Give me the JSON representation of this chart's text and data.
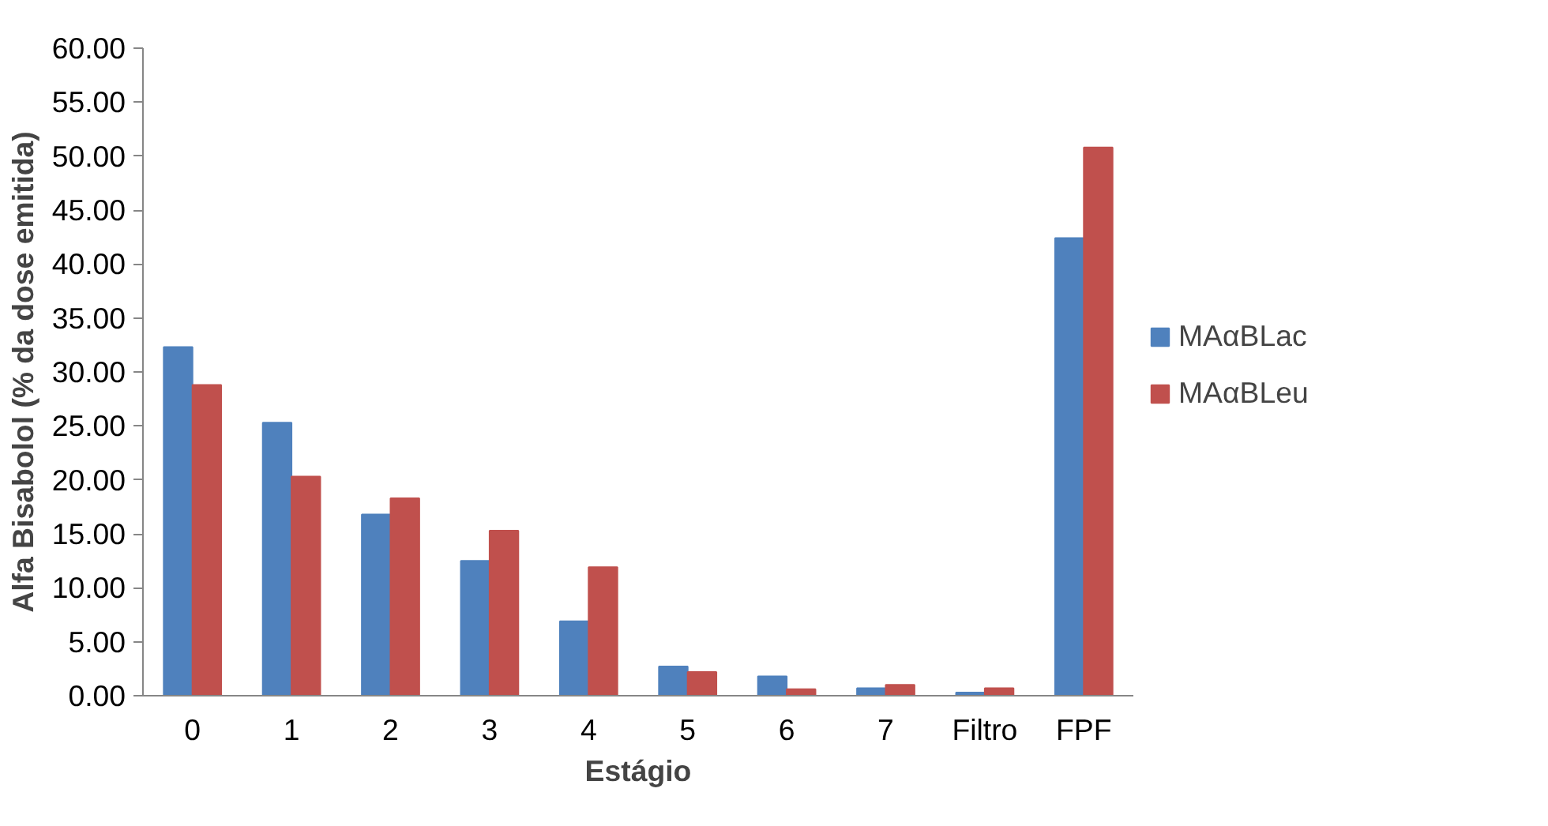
{
  "chart_data": {
    "type": "bar",
    "xlabel": "Estágio",
    "ylabel": "Alfa Bisabolol (% da dose emitida)",
    "categories": [
      "0",
      "1",
      "2",
      "3",
      "4",
      "5",
      "6",
      "7",
      "Filtro",
      "FPF"
    ],
    "series": [
      {
        "name": "MAαBLac",
        "color": "#4f81bd",
        "values": [
          32.3,
          25.3,
          16.8,
          12.5,
          6.9,
          2.7,
          1.8,
          0.7,
          0.3,
          42.4
        ]
      },
      {
        "name": "MAαBLeu",
        "color": "#c0504d",
        "values": [
          28.8,
          20.3,
          18.3,
          15.3,
          11.9,
          2.2,
          0.6,
          1.0,
          0.7,
          50.8
        ]
      }
    ],
    "ylim": [
      0,
      60
    ],
    "yticks": [
      {
        "value": 0,
        "label": "0.00"
      },
      {
        "value": 5,
        "label": "5.00"
      },
      {
        "value": 10,
        "label": "10.00"
      },
      {
        "value": 15,
        "label": "15.00"
      },
      {
        "value": 20,
        "label": "20.00"
      },
      {
        "value": 25,
        "label": "25.00"
      },
      {
        "value": 30,
        "label": "30.00"
      },
      {
        "value": 35,
        "label": "35.00"
      },
      {
        "value": 40,
        "label": "40.00"
      },
      {
        "value": 45,
        "label": "45.00"
      },
      {
        "value": 50,
        "label": "50.00"
      },
      {
        "value": 55,
        "label": "55.00"
      },
      {
        "value": 60,
        "label": "60.00"
      }
    ],
    "grid": false,
    "legend": "right"
  }
}
